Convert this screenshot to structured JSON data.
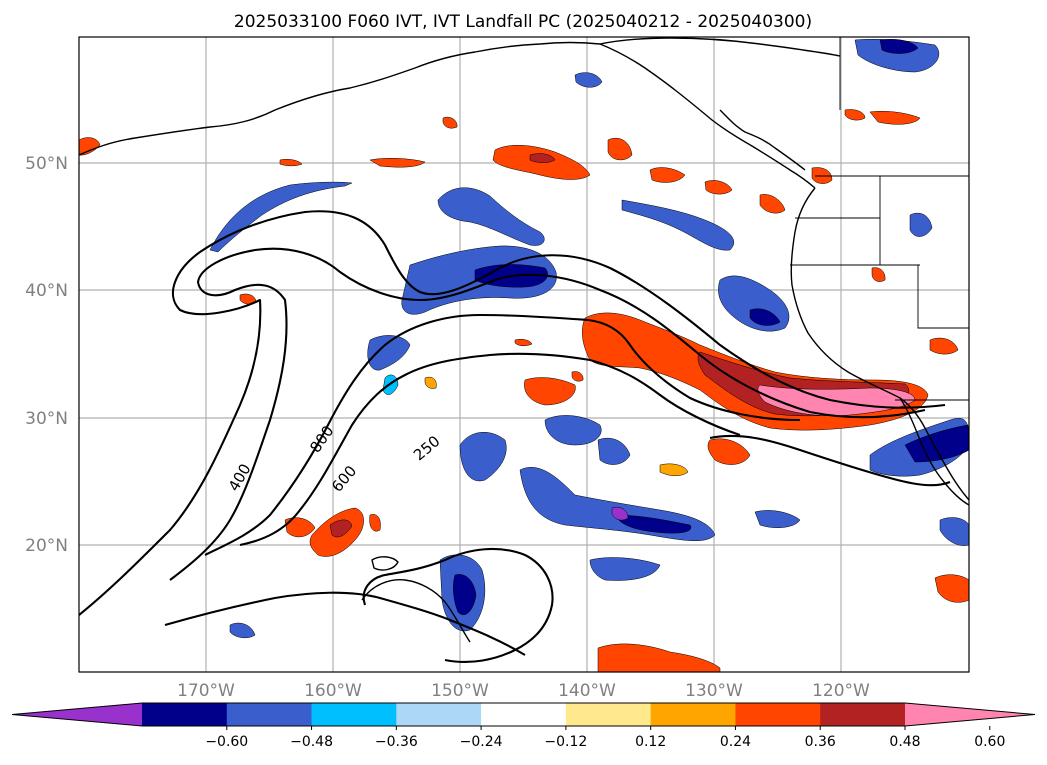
{
  "title": "2025033100 F060 IVT, IVT Landfall PC (2025040212 - 2025040300)",
  "lat_labels": [
    "50°N",
    "40°N",
    "30°N",
    "20°N"
  ],
  "lon_labels": [
    "170°W",
    "160°W",
    "150°W",
    "140°W",
    "130°W",
    "120°W"
  ],
  "contour_labels": [
    "400",
    "800",
    "600",
    "250"
  ],
  "colorbar": {
    "ticks": [
      "−0.60",
      "−0.48",
      "−0.36",
      "−0.24",
      "−0.12",
      "0.12",
      "0.24",
      "0.36",
      "0.48",
      "0.60"
    ],
    "colors": [
      "#9932cc",
      "#00008b",
      "#3a5fcd",
      "#00bfff",
      "#add8f5",
      "#ffffff",
      "#ffe98c",
      "#ffa500",
      "#ff4500",
      "#b22222",
      "#ff85b0"
    ]
  },
  "palette": {
    "neg_strong": "#00008b",
    "neg_mid": "#3a5fcd",
    "neg_light": "#00bfff",
    "neg_faint": "#add8f5",
    "neg_extreme": "#9932cc",
    "pos_faint": "#ffe98c",
    "pos_light": "#ffa500",
    "pos_mid": "#ff4500",
    "pos_strong": "#b22222",
    "pos_extreme": "#ff85b0"
  }
}
